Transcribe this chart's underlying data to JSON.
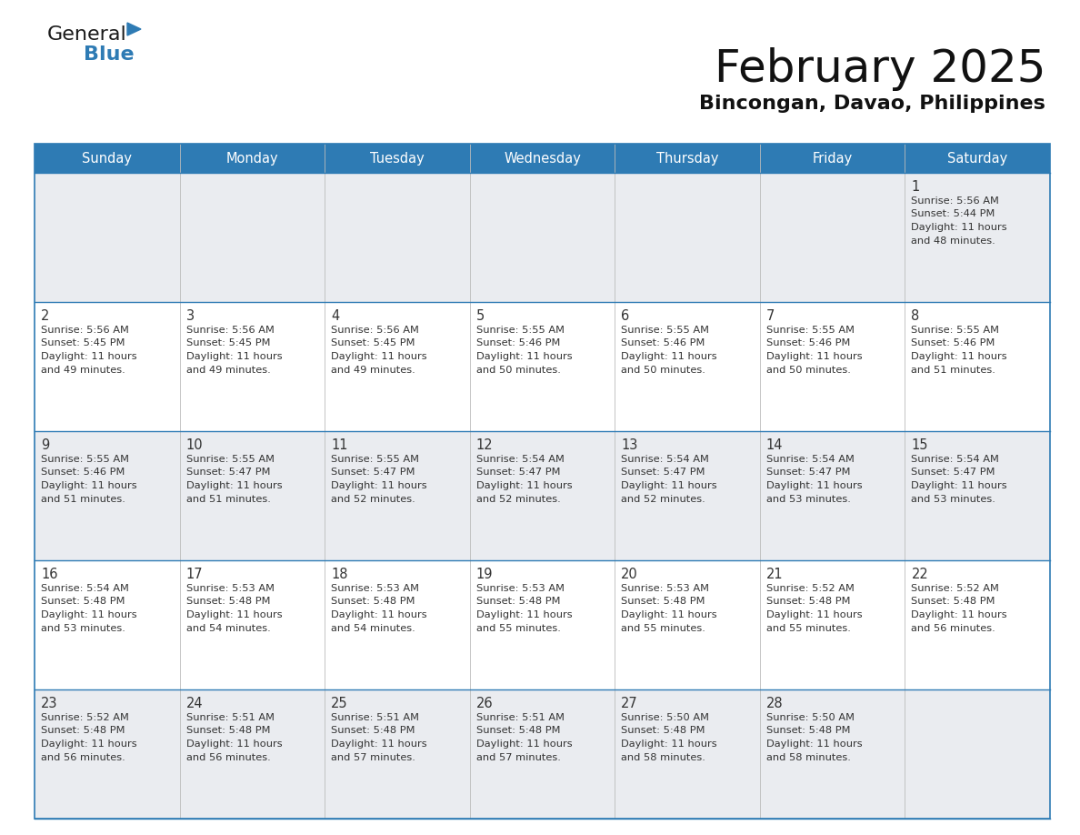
{
  "title": "February 2025",
  "subtitle": "Bincongan, Davao, Philippines",
  "header_bg": "#2E7BB4",
  "header_text": "#FFFFFF",
  "day_names": [
    "Sunday",
    "Monday",
    "Tuesday",
    "Wednesday",
    "Thursday",
    "Friday",
    "Saturday"
  ],
  "row_bg_light": "#EAECF0",
  "row_bg_white": "#FFFFFF",
  "cell_border_color": "#2E7BB4",
  "cell_vborder_color": "#BBBBBB",
  "day_num_color": "#333333",
  "info_color": "#333333",
  "calendar": [
    [
      null,
      null,
      null,
      null,
      null,
      null,
      {
        "day": 1,
        "sunrise": "5:56 AM",
        "sunset": "5:44 PM",
        "daylight": "11 hours and 48 minutes."
      }
    ],
    [
      {
        "day": 2,
        "sunrise": "5:56 AM",
        "sunset": "5:45 PM",
        "daylight": "11 hours and 49 minutes."
      },
      {
        "day": 3,
        "sunrise": "5:56 AM",
        "sunset": "5:45 PM",
        "daylight": "11 hours and 49 minutes."
      },
      {
        "day": 4,
        "sunrise": "5:56 AM",
        "sunset": "5:45 PM",
        "daylight": "11 hours and 49 minutes."
      },
      {
        "day": 5,
        "sunrise": "5:55 AM",
        "sunset": "5:46 PM",
        "daylight": "11 hours and 50 minutes."
      },
      {
        "day": 6,
        "sunrise": "5:55 AM",
        "sunset": "5:46 PM",
        "daylight": "11 hours and 50 minutes."
      },
      {
        "day": 7,
        "sunrise": "5:55 AM",
        "sunset": "5:46 PM",
        "daylight": "11 hours and 50 minutes."
      },
      {
        "day": 8,
        "sunrise": "5:55 AM",
        "sunset": "5:46 PM",
        "daylight": "11 hours and 51 minutes."
      }
    ],
    [
      {
        "day": 9,
        "sunrise": "5:55 AM",
        "sunset": "5:46 PM",
        "daylight": "11 hours and 51 minutes."
      },
      {
        "day": 10,
        "sunrise": "5:55 AM",
        "sunset": "5:47 PM",
        "daylight": "11 hours and 51 minutes."
      },
      {
        "day": 11,
        "sunrise": "5:55 AM",
        "sunset": "5:47 PM",
        "daylight": "11 hours and 52 minutes."
      },
      {
        "day": 12,
        "sunrise": "5:54 AM",
        "sunset": "5:47 PM",
        "daylight": "11 hours and 52 minutes."
      },
      {
        "day": 13,
        "sunrise": "5:54 AM",
        "sunset": "5:47 PM",
        "daylight": "11 hours and 52 minutes."
      },
      {
        "day": 14,
        "sunrise": "5:54 AM",
        "sunset": "5:47 PM",
        "daylight": "11 hours and 53 minutes."
      },
      {
        "day": 15,
        "sunrise": "5:54 AM",
        "sunset": "5:47 PM",
        "daylight": "11 hours and 53 minutes."
      }
    ],
    [
      {
        "day": 16,
        "sunrise": "5:54 AM",
        "sunset": "5:48 PM",
        "daylight": "11 hours and 53 minutes."
      },
      {
        "day": 17,
        "sunrise": "5:53 AM",
        "sunset": "5:48 PM",
        "daylight": "11 hours and 54 minutes."
      },
      {
        "day": 18,
        "sunrise": "5:53 AM",
        "sunset": "5:48 PM",
        "daylight": "11 hours and 54 minutes."
      },
      {
        "day": 19,
        "sunrise": "5:53 AM",
        "sunset": "5:48 PM",
        "daylight": "11 hours and 55 minutes."
      },
      {
        "day": 20,
        "sunrise": "5:53 AM",
        "sunset": "5:48 PM",
        "daylight": "11 hours and 55 minutes."
      },
      {
        "day": 21,
        "sunrise": "5:52 AM",
        "sunset": "5:48 PM",
        "daylight": "11 hours and 55 minutes."
      },
      {
        "day": 22,
        "sunrise": "5:52 AM",
        "sunset": "5:48 PM",
        "daylight": "11 hours and 56 minutes."
      }
    ],
    [
      {
        "day": 23,
        "sunrise": "5:52 AM",
        "sunset": "5:48 PM",
        "daylight": "11 hours and 56 minutes."
      },
      {
        "day": 24,
        "sunrise": "5:51 AM",
        "sunset": "5:48 PM",
        "daylight": "11 hours and 56 minutes."
      },
      {
        "day": 25,
        "sunrise": "5:51 AM",
        "sunset": "5:48 PM",
        "daylight": "11 hours and 57 minutes."
      },
      {
        "day": 26,
        "sunrise": "5:51 AM",
        "sunset": "5:48 PM",
        "daylight": "11 hours and 57 minutes."
      },
      {
        "day": 27,
        "sunrise": "5:50 AM",
        "sunset": "5:48 PM",
        "daylight": "11 hours and 58 minutes."
      },
      {
        "day": 28,
        "sunrise": "5:50 AM",
        "sunset": "5:48 PM",
        "daylight": "11 hours and 58 minutes."
      },
      null
    ]
  ],
  "logo_general_color": "#1a1a1a",
  "logo_blue_color": "#2E7BB4",
  "logo_triangle_color": "#2E7BB4",
  "fig_width": 11.88,
  "fig_height": 9.18,
  "dpi": 100
}
